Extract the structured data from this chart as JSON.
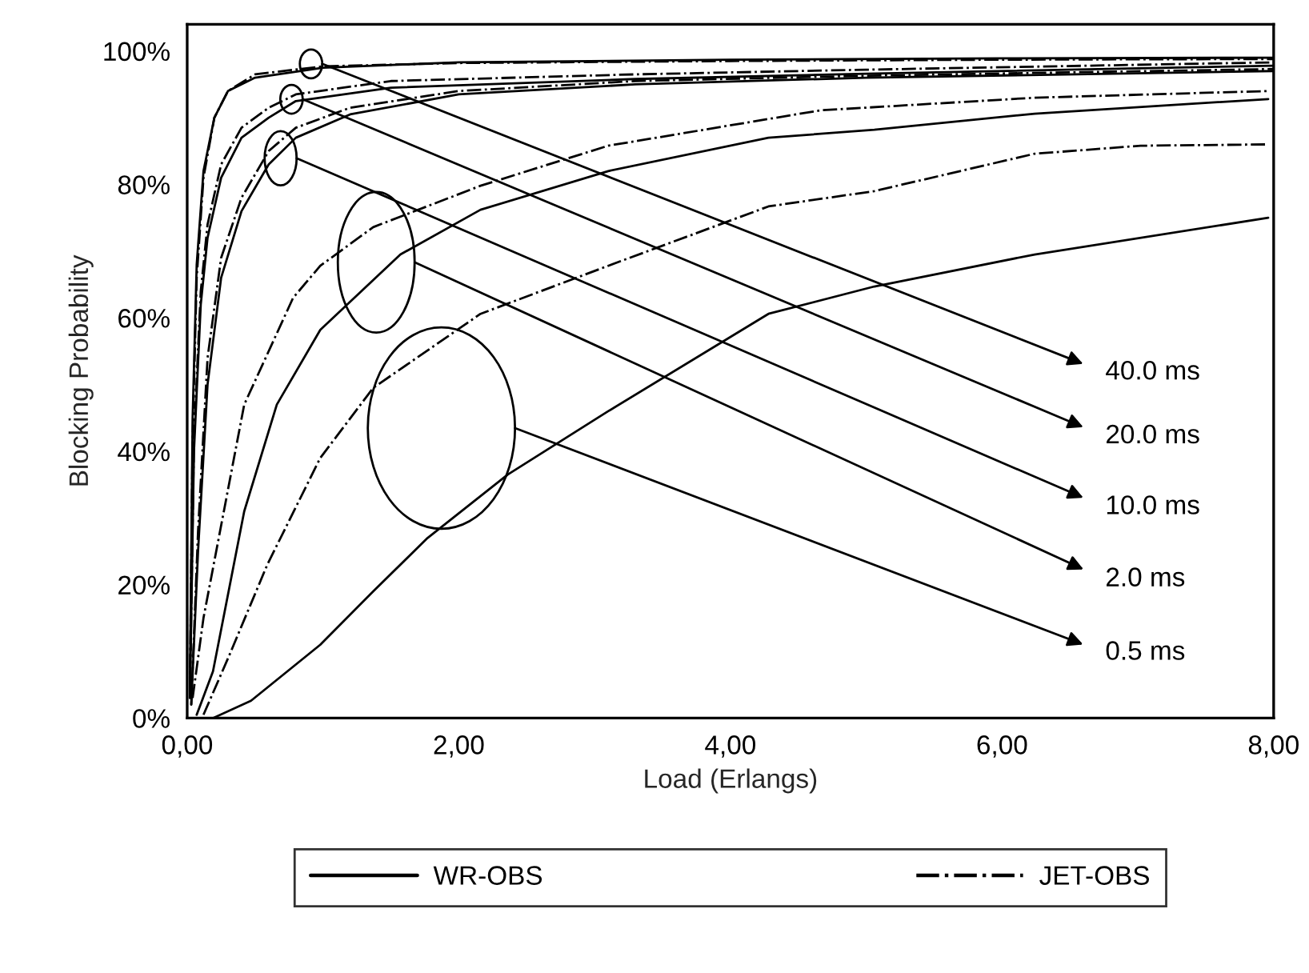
{
  "chart_data": {
    "type": "line",
    "xlabel": "Load (Erlangs)",
    "ylabel": "Blocking Probability",
    "xlim": [
      0,
      8
    ],
    "ylim": [
      0,
      104
    ],
    "xticks": [
      {
        "value": 0,
        "label": "0,00"
      },
      {
        "value": 2,
        "label": "2,00"
      },
      {
        "value": 4,
        "label": "4,00"
      },
      {
        "value": 6,
        "label": "6,00"
      },
      {
        "value": 8,
        "label": "8,00"
      }
    ],
    "yticks": [
      {
        "value": 0,
        "label": "0%"
      },
      {
        "value": 20,
        "label": "20%"
      },
      {
        "value": 40,
        "label": "40%"
      },
      {
        "value": 60,
        "label": "60%"
      },
      {
        "value": 80,
        "label": "80%"
      },
      {
        "value": 100,
        "label": "100%"
      }
    ],
    "grid": false,
    "legend": "bottom",
    "marker": "none",
    "series": [
      {
        "name": "WR-OBS",
        "color": "#000000",
        "line_style": "solid",
        "x": [
          0.02,
          0.04,
          0.07,
          0.12,
          0.2,
          0.3,
          0.5,
          1,
          2,
          4,
          6,
          8
        ],
        "values": [
          5,
          45,
          68,
          82,
          90,
          94,
          96,
          97.5,
          98.3,
          98.7,
          98.9,
          99
        ]
      },
      {
        "color": "#000000",
        "line_style": "dashdot",
        "x": [
          0.02,
          0.04,
          0.07,
          0.12,
          0.2,
          0.3,
          0.5,
          1,
          2,
          4,
          6,
          8
        ],
        "values": [
          4,
          42,
          66,
          81,
          90,
          94,
          96.5,
          97.7,
          98.2,
          98.5,
          98.7,
          98.8
        ]
      },
      {
        "color": "#000000",
        "line_style": "solid",
        "x": [
          0.02,
          0.05,
          0.1,
          0.15,
          0.25,
          0.4,
          0.6,
          0.8,
          1.5,
          3.3,
          5,
          8
        ],
        "values": [
          3,
          40,
          62,
          72,
          81,
          87,
          90,
          92.5,
          94.5,
          95.8,
          96.6,
          97.8
        ]
      },
      {
        "color": "#000000",
        "line_style": "dashdot",
        "x": [
          0.02,
          0.05,
          0.1,
          0.15,
          0.25,
          0.4,
          0.6,
          0.8,
          1.5,
          3.3,
          5,
          8
        ],
        "values": [
          3,
          42,
          64,
          74,
          83,
          88.5,
          91.5,
          93.5,
          95.5,
          96.5,
          97.2,
          98.3
        ]
      },
      {
        "color": "#000000",
        "line_style": "solid",
        "x": [
          0.03,
          0.08,
          0.15,
          0.25,
          0.4,
          0.6,
          0.8,
          1.2,
          2,
          3.3,
          5,
          8
        ],
        "values": [
          2,
          25,
          50,
          66,
          76,
          83,
          87,
          90.5,
          93.5,
          95,
          96,
          97
        ]
      },
      {
        "color": "#000000",
        "line_style": "dashdot",
        "x": [
          0.03,
          0.08,
          0.15,
          0.25,
          0.4,
          0.6,
          0.8,
          1.2,
          2,
          3.3,
          5,
          8
        ],
        "values": [
          2,
          28,
          54,
          69,
          78,
          85,
          88.5,
          91.5,
          94,
          95.5,
          96.3,
          97.3
        ]
      },
      {
        "color": "#000000",
        "line_style": "solid",
        "x": [
          0.07,
          0.19,
          0.42,
          0.66,
          0.98,
          1.57,
          2.16,
          3.1,
          4.28,
          5.06,
          6.24,
          7.96
        ],
        "values": [
          0.5,
          7,
          31,
          47,
          58.2,
          69.5,
          76.2,
          82,
          87,
          88.2,
          90.6,
          92.8
        ]
      },
      {
        "color": "#000000",
        "line_style": "dashdot",
        "x": [
          0.04,
          0.12,
          0.27,
          0.42,
          0.78,
          0.98,
          1.37,
          2.16,
          3.1,
          4.66,
          6.24,
          7.96
        ],
        "values": [
          3,
          15,
          31,
          47,
          63,
          67.8,
          73.6,
          79.8,
          85.8,
          91.1,
          93,
          94
        ]
      },
      {
        "color": "#000000",
        "line_style": "solid",
        "x": [
          0.19,
          0.47,
          0.98,
          1.37,
          1.77,
          2.36,
          3.1,
          4.28,
          5.06,
          6.24,
          7.96
        ],
        "values": [
          0,
          2.6,
          11,
          19,
          27,
          36.5,
          46,
          60.6,
          64.7,
          69.5,
          75
        ]
      },
      {
        "name": "JET-OBS",
        "color": "#000000",
        "line_style": "dashdot",
        "x": [
          0.12,
          0.31,
          0.59,
          0.98,
          1.37,
          2.16,
          3.1,
          4.28,
          5.06,
          6.24,
          7.02,
          7.96
        ],
        "values": [
          0.5,
          9.4,
          23,
          39,
          49.5,
          60.6,
          67.8,
          76.7,
          79,
          84.6,
          85.8,
          86
        ]
      }
    ],
    "annotations": [
      "40.0 ms",
      "20.0 ms",
      "10.0 ms",
      "2.0 ms",
      "0.5 ms"
    ]
  }
}
